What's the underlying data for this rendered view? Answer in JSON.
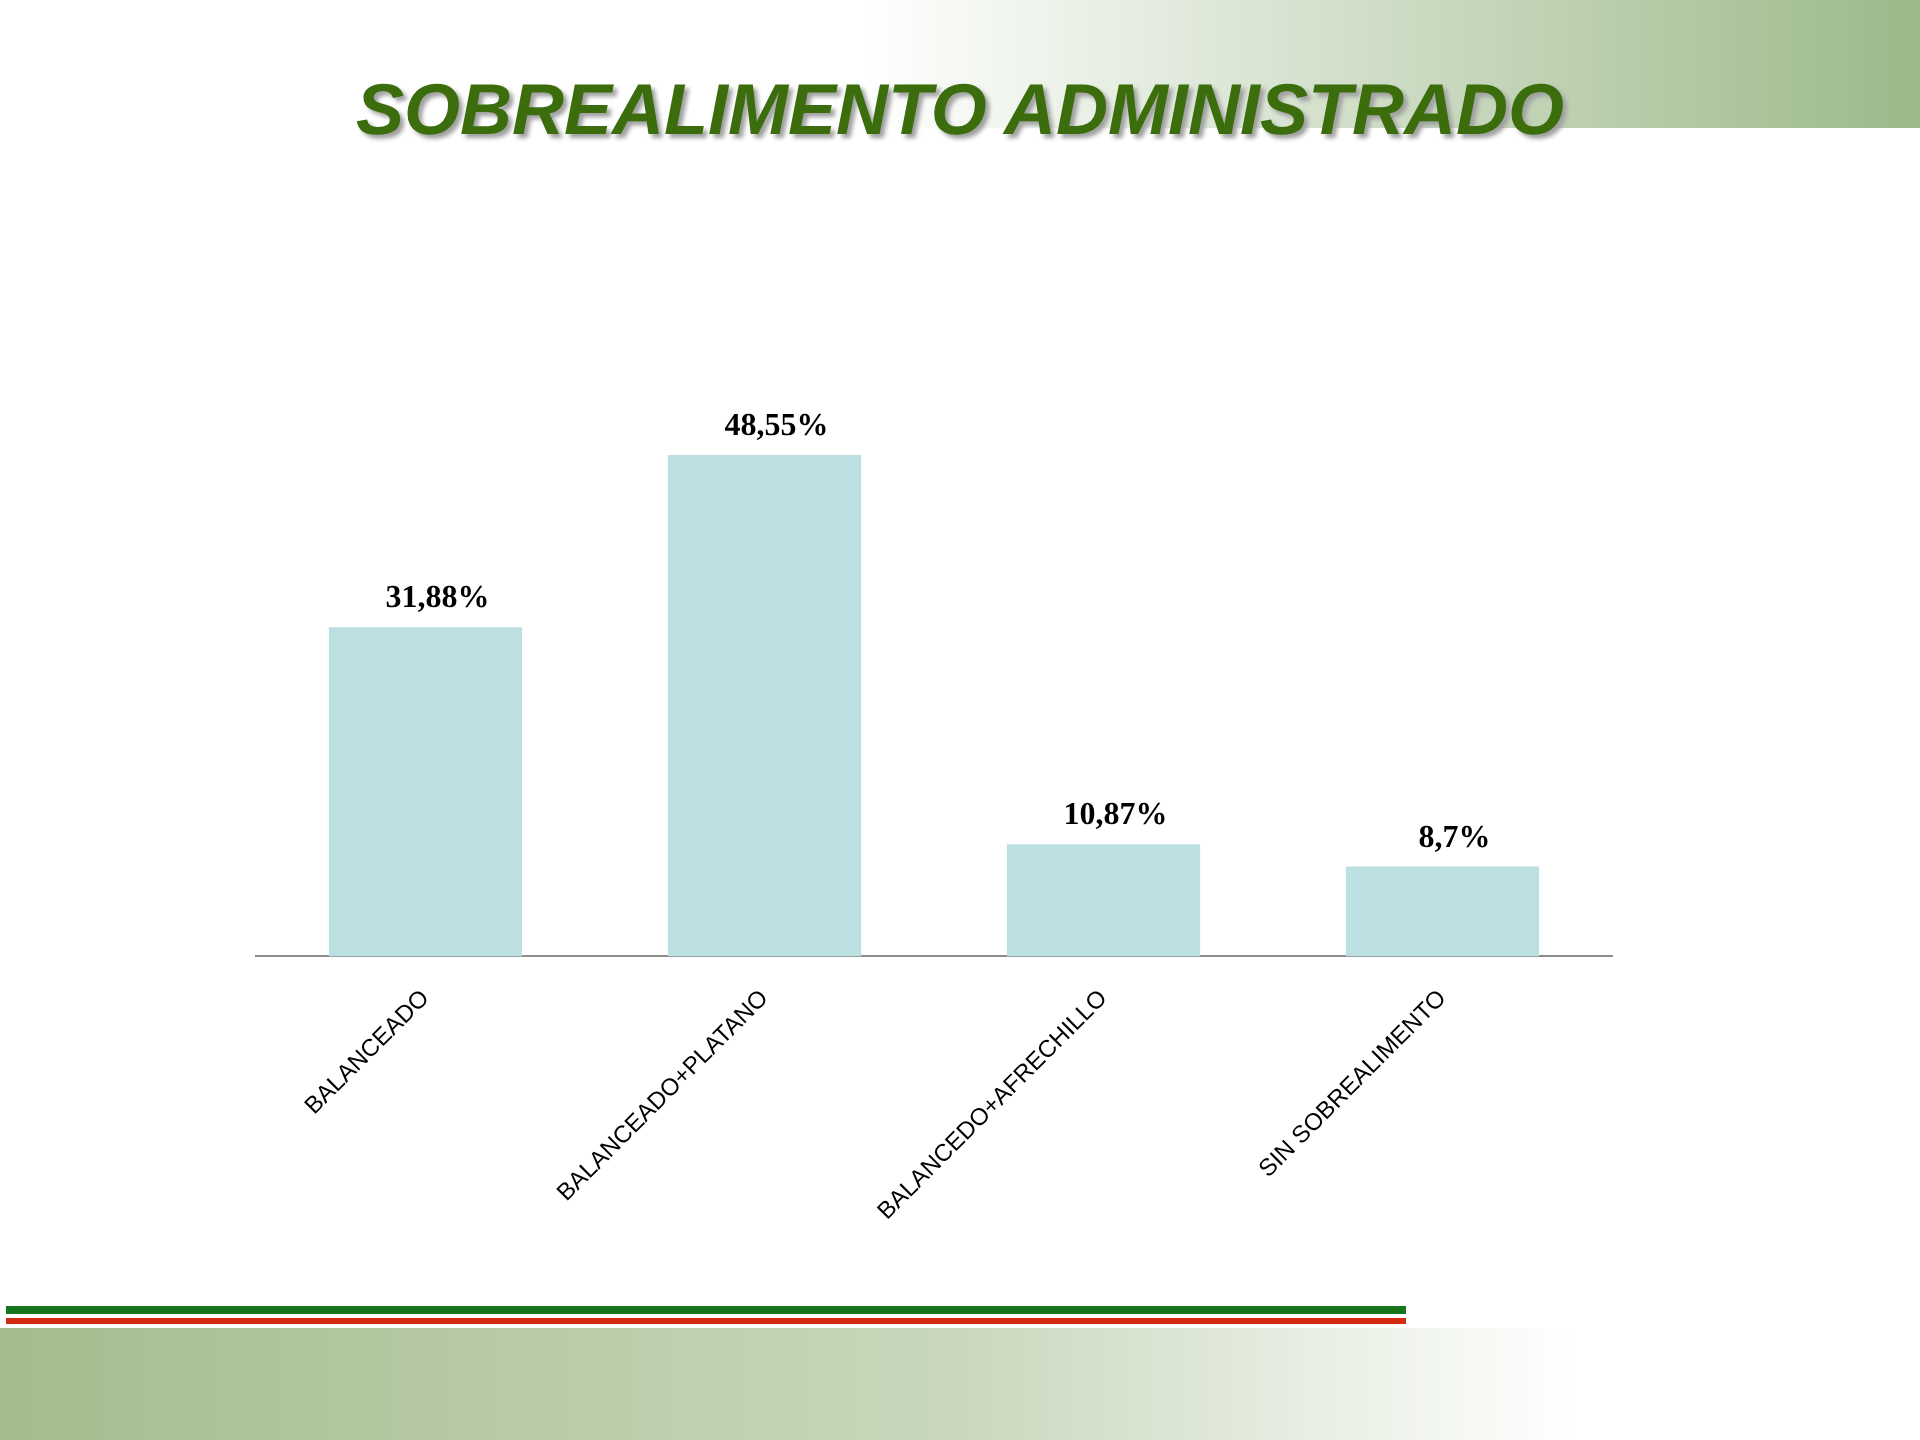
{
  "chart_data": {
    "type": "bar",
    "title": "SOBREALIMENTO ADMINISTRADO",
    "categories": [
      "BALANCEADO",
      "BALANCEADO+PLATANO",
      "BALANCEDO+AFRECHILLO",
      "SIN SOBREALIMENTO"
    ],
    "values": [
      31.88,
      48.55,
      10.87,
      8.7
    ],
    "value_labels": [
      "31,88%",
      "48,55%",
      "10,87%",
      "8,7%"
    ],
    "color": "#bce0e2",
    "grid": false,
    "tick_labels": "x"
  }
}
